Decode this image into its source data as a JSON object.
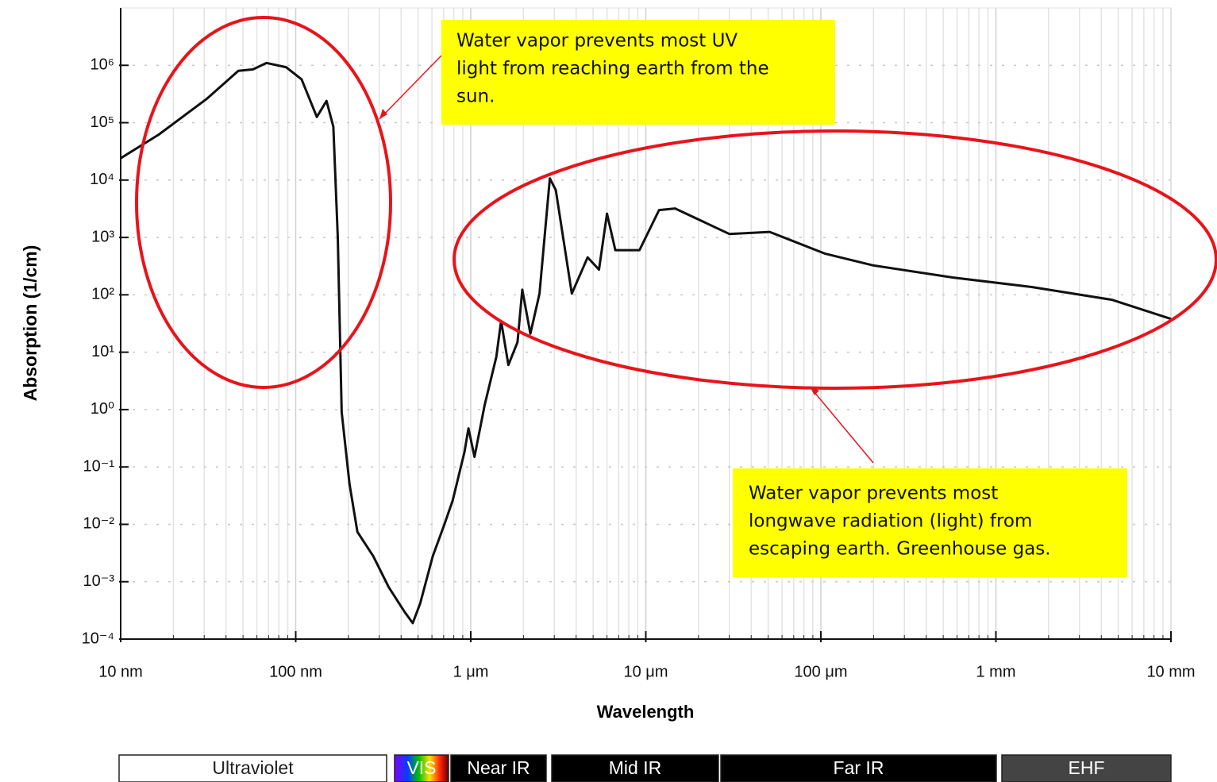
{
  "chart_data": {
    "type": "line",
    "log_x": true,
    "log_y": true,
    "grid": true,
    "color": "#111111",
    "xlabel": "Wavelength",
    "ylabel": "Absorption (1/cm)",
    "x": [
      10,
      16.5,
      31,
      47,
      57,
      68,
      88,
      108,
      132,
      150,
      164,
      174,
      183,
      203,
      225,
      277,
      340,
      418,
      466,
      514,
      607,
      707,
      788,
      920,
      970,
      1050,
      1200,
      1400,
      1490,
      1640,
      1850,
      1970,
      2190,
      2470,
      2830,
      3060,
      3780,
      4650,
      5400,
      6000,
      6700,
      9200,
      11900,
      14700,
      30000,
      51000,
      106000,
      200000,
      570000,
      1600000,
      4600000,
      10000000
    ],
    "values": [
      24000,
      62000,
      260000,
      800000,
      850000,
      1100000,
      930000,
      570000,
      126000,
      240000,
      85000,
      1000,
      0.9,
      0.05,
      0.0074,
      0.0028,
      0.0008,
      0.0003,
      0.00019,
      0.00042,
      0.0028,
      0.01,
      0.026,
      0.18,
      0.47,
      0.15,
      1.2,
      8.3,
      35,
      6,
      15,
      123,
      21,
      105,
      10700,
      6700,
      105,
      450,
      275,
      2600,
      600,
      600,
      3000,
      3200,
      1150,
      1250,
      520,
      325,
      200,
      137,
      82,
      38
    ],
    "xlim": [
      10,
      10000000
    ],
    "xticks": [
      {
        "value": 10,
        "label": "10 nm"
      },
      {
        "value": 100,
        "label": "100 nm"
      },
      {
        "value": 1000,
        "label": "1 μm"
      },
      {
        "value": 10000,
        "label": "10 μm"
      },
      {
        "value": 100000,
        "label": "100 μm"
      },
      {
        "value": 1000000,
        "label": "1 mm"
      },
      {
        "value": 10000000,
        "label": "10 mm"
      }
    ],
    "ylim": [
      0.0001,
      10000000
    ],
    "yticks": [
      {
        "value": 0.0001,
        "label": "10⁻⁴"
      },
      {
        "value": 0.001,
        "label": "10⁻³"
      },
      {
        "value": 0.01,
        "label": "10⁻²"
      },
      {
        "value": 0.1,
        "label": "10⁻¹"
      },
      {
        "value": 1,
        "label": "10⁰"
      },
      {
        "value": 10,
        "label": "10¹"
      },
      {
        "value": 100,
        "label": "10²"
      },
      {
        "value": 1000,
        "label": "10³"
      },
      {
        "value": 10000,
        "label": "10⁴"
      },
      {
        "value": 100000,
        "label": "10⁵"
      },
      {
        "value": 1000000,
        "label": "10⁶"
      }
    ],
    "annotations": [
      {
        "lines": [
          "Water vapor prevents most UV",
          "light from  reaching earth from the",
          "sun."
        ]
      },
      {
        "lines": [
          "Water vapor prevents most",
          "longwave radiation (light) from",
          "escaping earth.  Greenhouse gas."
        ]
      }
    ],
    "bands": [
      "Ultraviolet",
      "VIS",
      "Near IR",
      "Mid IR",
      "Far IR",
      "EHF"
    ]
  }
}
